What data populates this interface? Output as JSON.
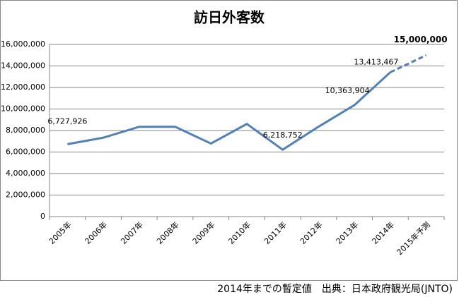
{
  "chart_data": {
    "type": "line",
    "title": "訪日外客数",
    "categories": [
      "2005年",
      "2006年",
      "2007年",
      "2008年",
      "2009年",
      "2010年",
      "2011年",
      "2012年",
      "2013年",
      "2014年",
      "2015年予測"
    ],
    "series": [
      {
        "color": "#4f81bd",
        "style": "solid",
        "values": [
          6727926,
          7334077,
          8346969,
          8350835,
          6789658,
          8611175,
          6218752,
          8358105,
          10363904,
          13413467,
          null
        ],
        "value_labels": [
          "6,727,926",
          null,
          null,
          null,
          null,
          null,
          "6,218,752",
          null,
          "10,363,904",
          "13,413,467",
          null
        ]
      },
      {
        "color": "#4f81bd",
        "style": "dashed",
        "values": [
          null,
          null,
          null,
          null,
          null,
          null,
          null,
          null,
          null,
          13413467,
          15000000
        ],
        "value_labels": [
          null,
          null,
          null,
          null,
          null,
          null,
          null,
          null,
          null,
          null,
          "15,000,000"
        ]
      }
    ],
    "ylim": [
      0,
      16000000
    ],
    "yticks": [
      0,
      {
        "value": 2000000,
        "label": "2,000,000"
      },
      {
        "value": 4000000,
        "label": "4,000,000"
      },
      {
        "value": 6000000,
        "label": "6,000,000"
      },
      {
        "value": 8000000,
        "label": "8,000,000"
      },
      {
        "value": 10000000,
        "label": "10,000,000"
      },
      {
        "value": 12000000,
        "label": "12,000,000"
      },
      {
        "value": 14000000,
        "label": "14,000,000"
      },
      {
        "value": 16000000,
        "label": "16,000,000"
      }
    ],
    "grid": true,
    "note": "2014年までの暫定値　出典：日本政府観光局(JNTO)"
  }
}
